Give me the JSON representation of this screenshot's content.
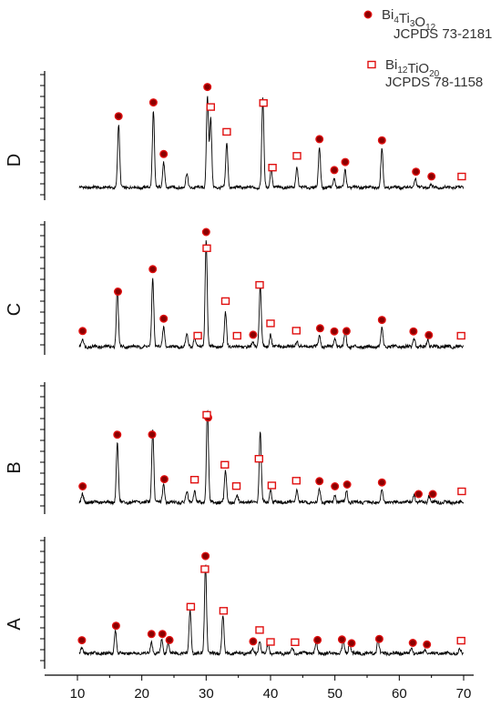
{
  "chart_data": {
    "type": "line",
    "xlim": [
      5,
      75
    ],
    "x_ticks": [
      10,
      20,
      30,
      40,
      50,
      60,
      70
    ],
    "grid": false,
    "legend_position": "top-right",
    "colors": {
      "trace": "#000000",
      "bi4ti3o12_marker_fill": "#8b0000",
      "bi4ti3o12_marker_edge": "#e01010",
      "bi12tio20_marker": "#e01010"
    },
    "legend": [
      {
        "marker": "filled-circle",
        "formula_parts": [
          {
            "t": "Bi",
            "s": "4"
          },
          {
            "t": "Ti",
            "s": "3"
          },
          {
            "t": "O",
            "s": "12"
          }
        ],
        "card": "JCPDS 73-2181"
      },
      {
        "marker": "open-square",
        "formula_parts": [
          {
            "t": "Bi",
            "s": "12"
          },
          {
            "t": "TiO",
            "s": "20"
          }
        ],
        "card": "JCPDS 78-1158"
      }
    ],
    "series": [
      {
        "name": "D",
        "peaks": [
          {
            "x": 16.4,
            "y": 0.55
          },
          {
            "x": 21.8,
            "y": 0.67
          },
          {
            "x": 23.4,
            "y": 0.22
          },
          {
            "x": 27.0,
            "y": 0.12
          },
          {
            "x": 30.2,
            "y": 0.8
          },
          {
            "x": 30.7,
            "y": 0.6
          },
          {
            "x": 33.2,
            "y": 0.39
          },
          {
            "x": 38.8,
            "y": 0.78
          },
          {
            "x": 40.1,
            "y": 0.17
          },
          {
            "x": 44.1,
            "y": 0.18
          },
          {
            "x": 47.6,
            "y": 0.35
          },
          {
            "x": 49.9,
            "y": 0.08
          },
          {
            "x": 51.6,
            "y": 0.15
          },
          {
            "x": 57.3,
            "y": 0.34
          },
          {
            "x": 62.5,
            "y": 0.08
          },
          {
            "x": 64.9,
            "y": 0.03
          }
        ],
        "bi4ti3o12_marker_x": [
          16.4,
          21.8,
          23.4,
          30.2,
          47.6,
          49.9,
          51.6,
          57.3,
          62.6,
          65.0
        ],
        "bi12tio20_marker_x": [
          30.7,
          33.2,
          38.9,
          40.3,
          44.1,
          69.7
        ]
      },
      {
        "name": "C",
        "peaks": [
          {
            "x": 10.8,
            "y": 0.06
          },
          {
            "x": 16.2,
            "y": 0.46
          },
          {
            "x": 21.7,
            "y": 0.56
          },
          {
            "x": 23.4,
            "y": 0.16
          },
          {
            "x": 27.0,
            "y": 0.1
          },
          {
            "x": 28.2,
            "y": 0.08
          },
          {
            "x": 30.0,
            "y": 0.86
          },
          {
            "x": 33.0,
            "y": 0.28
          },
          {
            "x": 37.3,
            "y": 0.03
          },
          {
            "x": 38.4,
            "y": 0.5
          },
          {
            "x": 40.0,
            "y": 0.1
          },
          {
            "x": 44.1,
            "y": 0.05
          },
          {
            "x": 47.6,
            "y": 0.1
          },
          {
            "x": 50.0,
            "y": 0.07
          },
          {
            "x": 51.6,
            "y": 0.13
          },
          {
            "x": 57.3,
            "y": 0.15
          },
          {
            "x": 62.3,
            "y": 0.07
          },
          {
            "x": 64.4,
            "y": 0.06
          }
        ],
        "bi4ti3o12_marker_x": [
          10.8,
          16.3,
          21.7,
          23.4,
          30.0,
          37.3,
          47.7,
          49.9,
          51.8,
          57.3,
          62.2,
          64.6
        ],
        "bi12tio20_marker_x": [
          28.7,
          30.1,
          33.0,
          34.8,
          38.3,
          40.0,
          44.0,
          69.6
        ]
      },
      {
        "name": "B",
        "peaks": [
          {
            "x": 10.8,
            "y": 0.06
          },
          {
            "x": 16.2,
            "y": 0.46
          },
          {
            "x": 21.7,
            "y": 0.56
          },
          {
            "x": 23.4,
            "y": 0.14
          },
          {
            "x": 27.0,
            "y": 0.08
          },
          {
            "x": 28.2,
            "y": 0.09
          },
          {
            "x": 30.2,
            "y": 0.72
          },
          {
            "x": 33.0,
            "y": 0.25
          },
          {
            "x": 34.8,
            "y": 0.05
          },
          {
            "x": 38.4,
            "y": 0.55
          },
          {
            "x": 40.0,
            "y": 0.1
          },
          {
            "x": 44.1,
            "y": 0.1
          },
          {
            "x": 47.6,
            "y": 0.1
          },
          {
            "x": 50.0,
            "y": 0.06
          },
          {
            "x": 51.8,
            "y": 0.09
          },
          {
            "x": 57.3,
            "y": 0.09
          },
          {
            "x": 62.3,
            "y": 0.06
          },
          {
            "x": 64.6,
            "y": 0.05
          }
        ],
        "bi4ti3o12_marker_x": [
          10.8,
          16.2,
          21.6,
          23.5,
          30.3,
          47.6,
          50.0,
          51.9,
          57.3,
          63.0,
          65.2
        ],
        "bi12tio20_marker_x": [
          28.2,
          30.1,
          32.9,
          34.7,
          38.2,
          40.2,
          44.0,
          69.7
        ]
      },
      {
        "name": "A",
        "peaks": [
          {
            "x": 10.7,
            "y": 0.04
          },
          {
            "x": 15.9,
            "y": 0.19
          },
          {
            "x": 21.5,
            "y": 0.09
          },
          {
            "x": 23.1,
            "y": 0.11
          },
          {
            "x": 24.1,
            "y": 0.09
          },
          {
            "x": 27.5,
            "y": 0.35
          },
          {
            "x": 29.9,
            "y": 0.72
          },
          {
            "x": 32.6,
            "y": 0.31
          },
          {
            "x": 37.3,
            "y": 0.03
          },
          {
            "x": 38.3,
            "y": 0.1
          },
          {
            "x": 39.6,
            "y": 0.08
          },
          {
            "x": 43.4,
            "y": 0.04
          },
          {
            "x": 47.1,
            "y": 0.09
          },
          {
            "x": 51.3,
            "y": 0.1
          },
          {
            "x": 52.3,
            "y": 0.09
          },
          {
            "x": 56.7,
            "y": 0.11
          },
          {
            "x": 61.9,
            "y": 0.04
          },
          {
            "x": 64.0,
            "y": 0.03
          },
          {
            "x": 69.4,
            "y": 0.03
          }
        ],
        "bi4ti3o12_marker_x": [
          10.7,
          16.0,
          21.5,
          23.2,
          24.3,
          29.9,
          37.3,
          47.3,
          51.1,
          52.6,
          56.9,
          62.1,
          64.3
        ],
        "bi12tio20_marker_x": [
          27.6,
          29.8,
          32.7,
          38.3,
          40.0,
          43.8,
          69.6
        ]
      }
    ]
  }
}
